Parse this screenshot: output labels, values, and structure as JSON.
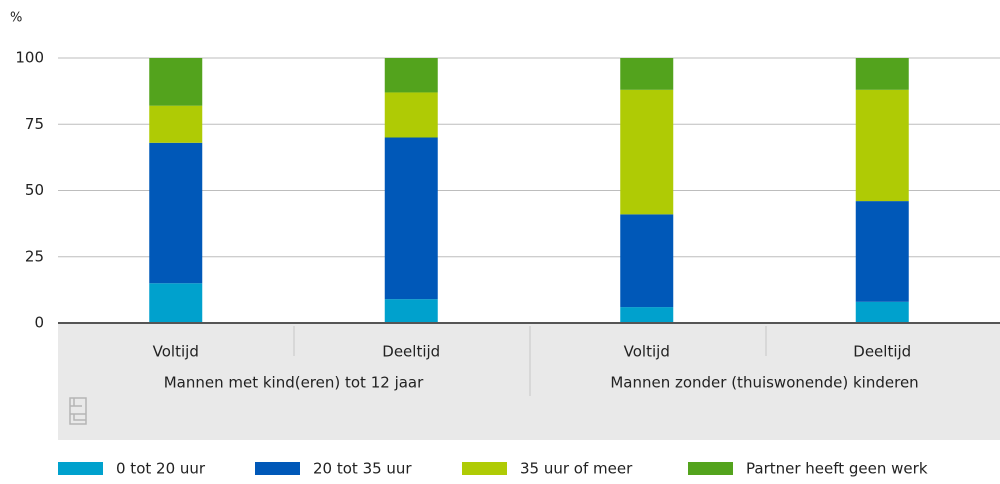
{
  "chart_data": {
    "type": "stacked-bar",
    "y_label": "%",
    "categories": [
      "Voltijd",
      "Deeltijd",
      "Voltijd",
      "Deeltijd"
    ],
    "groups": [
      "Mannen met kind(eren) tot 12 jaar",
      "Mannen zonder (thuiswonende) kinderen"
    ],
    "series": [
      {
        "name": "0 tot 20 uur",
        "color": "#00a1cd",
        "values": [
          15,
          9,
          6,
          8
        ]
      },
      {
        "name": "20 tot 35 uur",
        "color": "#0058b8",
        "values": [
          53,
          61,
          35,
          38
        ]
      },
      {
        "name": "35 uur of meer",
        "color": "#afcb05",
        "values": [
          14,
          17,
          47,
          42
        ]
      },
      {
        "name": "Partner heeft geen werk",
        "color": "#53a31d",
        "values": [
          18,
          13,
          12,
          12
        ]
      }
    ],
    "ylim": [
      0,
      100
    ],
    "yticks": [
      0,
      25,
      50,
      75,
      100
    ],
    "grid": true
  }
}
